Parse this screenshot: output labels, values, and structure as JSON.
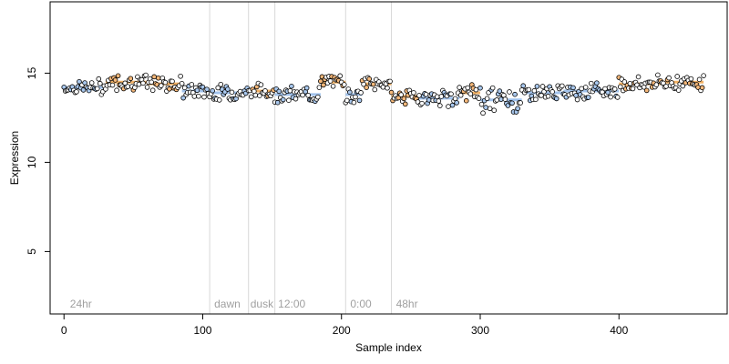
{
  "chart_data": {
    "type": "scatter",
    "title": "",
    "xlabel": "Sample index",
    "ylabel": "Expression",
    "xlim": [
      -10,
      478
    ],
    "ylim": [
      1.5,
      19
    ],
    "xticks": [
      0,
      100,
      200,
      300,
      400
    ],
    "yticks": [
      5,
      10,
      15
    ],
    "grid": false,
    "colors": {
      "point_stroke": "#000000",
      "fill_orange": "#f5b87a",
      "fill_blue": "#a9c8ee",
      "fill_none": "#ffffff",
      "vline": "#d8d8d8",
      "annotation": "#a0a0a0",
      "orange_bar": "#f0a040",
      "blue_bar": "#8ab4e8"
    },
    "vlines": [
      105,
      133,
      152,
      203,
      236
    ],
    "annotations": [
      {
        "x": 3,
        "label": "24hr"
      },
      {
        "x": 107,
        "label": "dawn"
      },
      {
        "x": 133,
        "label": "dusk"
      },
      {
        "x": 153,
        "label": "12:00"
      },
      {
        "x": 205,
        "label": "0:00"
      },
      {
        "x": 238,
        "label": "48hr"
      }
    ],
    "segments": [
      {
        "x0": 0,
        "x1": 30,
        "mean": 14.2,
        "shade": "blue"
      },
      {
        "x0": 30,
        "x1": 60,
        "mean": 14.5,
        "shade": "orange"
      },
      {
        "x0": 60,
        "x1": 85,
        "mean": 14.4,
        "shade": "orange"
      },
      {
        "x0": 85,
        "x1": 105,
        "mean": 14.0,
        "shade": "blue"
      },
      {
        "x0": 105,
        "x1": 133,
        "mean": 13.9,
        "shade": "blue"
      },
      {
        "x0": 133,
        "x1": 152,
        "mean": 14.0,
        "shade": "orange"
      },
      {
        "x0": 152,
        "x1": 185,
        "mean": 13.8,
        "shade": "blue"
      },
      {
        "x0": 185,
        "x1": 203,
        "mean": 14.5,
        "shade": "orange"
      },
      {
        "x0": 203,
        "x1": 215,
        "mean": 13.8,
        "shade": "blue"
      },
      {
        "x0": 215,
        "x1": 236,
        "mean": 14.4,
        "shade": "orange"
      },
      {
        "x0": 236,
        "x1": 255,
        "mean": 13.7,
        "shade": "orange"
      },
      {
        "x0": 255,
        "x1": 285,
        "mean": 13.6,
        "shade": "blue"
      },
      {
        "x0": 285,
        "x1": 300,
        "mean": 13.9,
        "shade": "orange"
      },
      {
        "x0": 300,
        "x1": 330,
        "mean": 13.5,
        "shade": "blue"
      },
      {
        "x0": 330,
        "x1": 360,
        "mean": 13.9,
        "shade": "blue"
      },
      {
        "x0": 360,
        "x1": 400,
        "mean": 14.0,
        "shade": "blue"
      },
      {
        "x0": 400,
        "x1": 430,
        "mean": 14.4,
        "shade": "orange"
      },
      {
        "x0": 430,
        "x1": 461,
        "mean": 14.5,
        "shade": "orange"
      }
    ],
    "n_points": 462
  }
}
